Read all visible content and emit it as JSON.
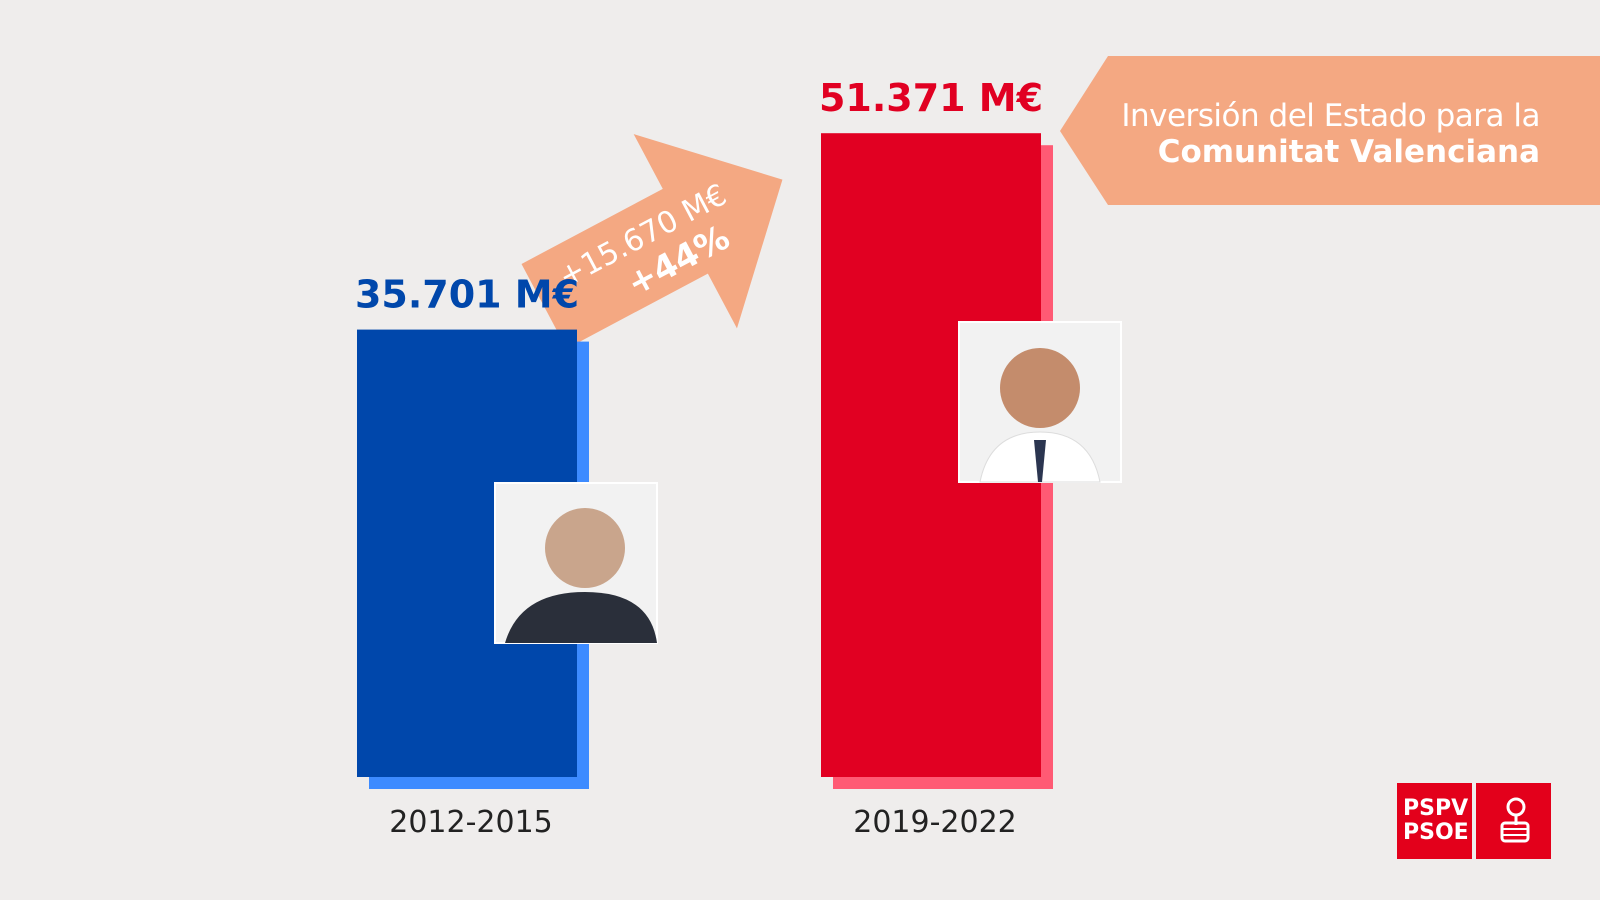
{
  "title": {
    "line1": "Inversión del Estado para la",
    "line2": "Comunitat Valenciana"
  },
  "arrow": {
    "amount_label": "+15.670 M€",
    "percent_label": "+44%"
  },
  "logo": {
    "line1": "PSPV",
    "line2": "PSOE"
  },
  "colors": {
    "background": "#efedec",
    "banner": "#f4a882",
    "blue": "#0047ab",
    "blue_shadow": "#3d8bff",
    "red": "#e10022",
    "red_shadow": "#ff5a74",
    "brand_red": "#e3001b"
  },
  "chart_data": {
    "type": "bar",
    "title": "Inversión del Estado para la Comunitat Valenciana",
    "categories": [
      "2012-2015",
      "2019-2022"
    ],
    "values": [
      35701,
      51371
    ],
    "value_labels": [
      "35.701 M€",
      "51.371 M€"
    ],
    "unit": "M€",
    "difference": 15670,
    "difference_percent": 44,
    "ylim": [
      0,
      62000
    ],
    "grid": false,
    "legend": "none"
  }
}
